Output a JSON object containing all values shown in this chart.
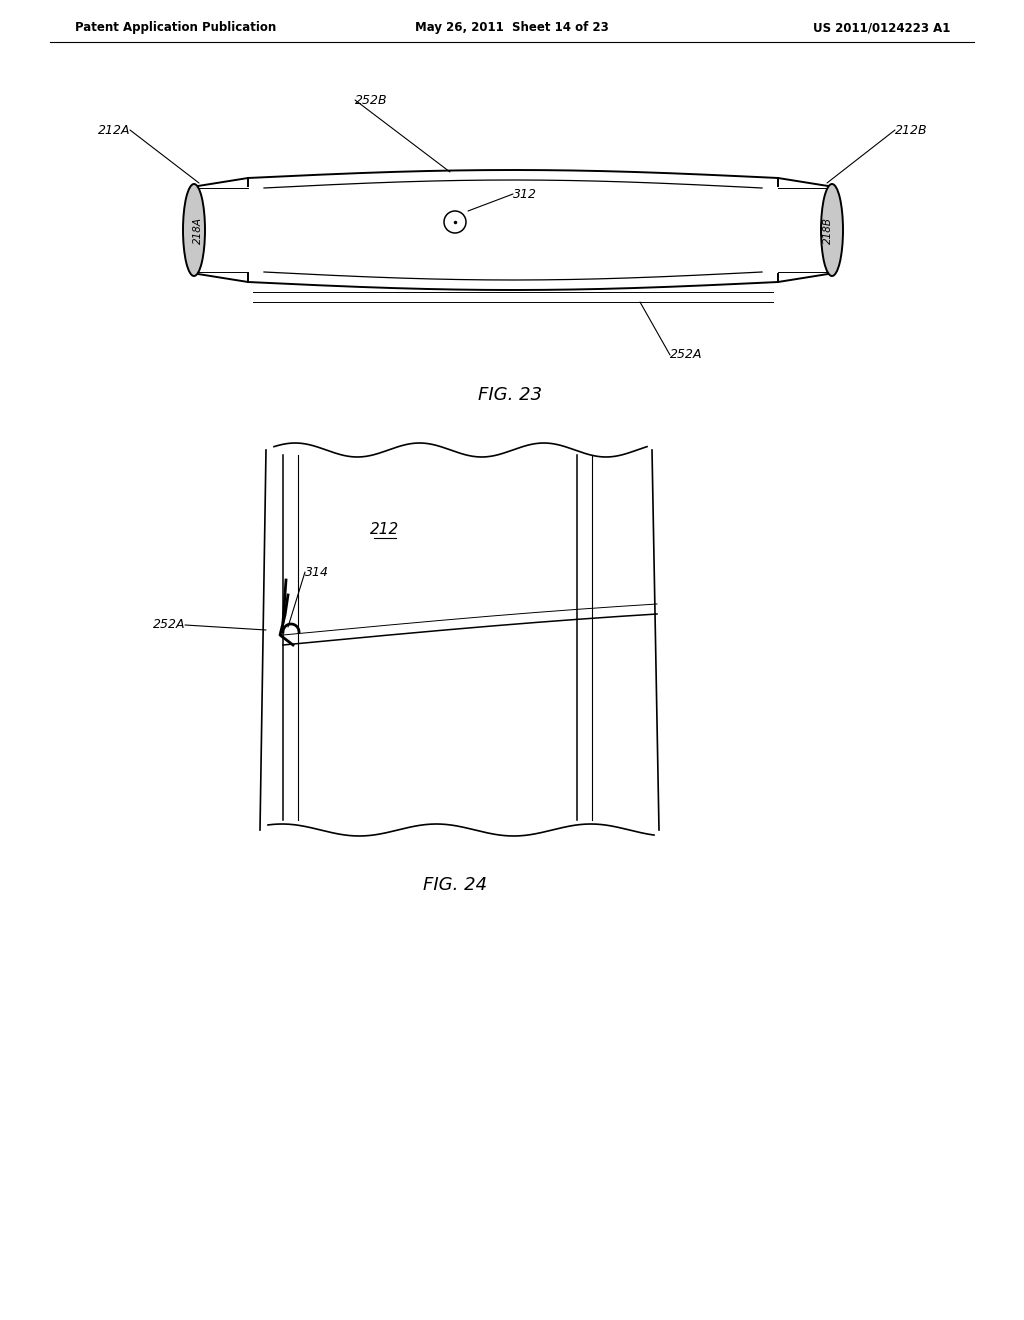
{
  "background_color": "#ffffff",
  "header_left": "Patent Application Publication",
  "header_mid": "May 26, 2011  Sheet 14 of 23",
  "header_right": "US 2011/0124223 A1",
  "fig23_label": "FIG. 23",
  "fig24_label": "FIG. 24"
}
